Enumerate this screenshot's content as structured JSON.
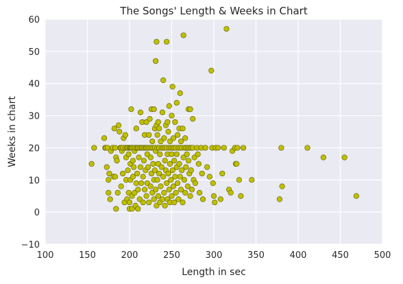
{
  "chart_data": {
    "type": "scatter",
    "title": "The Songs' Length & Weeks in Chart",
    "xlabel": "Length in sec",
    "ylabel": "Weeks in chart",
    "xlim": [
      100,
      500
    ],
    "ylim": [
      -10,
      60
    ],
    "xticks": [
      "100",
      "150",
      "200",
      "250",
      "300",
      "350",
      "400",
      "450",
      "500"
    ],
    "yticks": [
      "−10",
      "0",
      "10",
      "20",
      "30",
      "40",
      "50",
      "60"
    ],
    "grid": true,
    "background_color": "#eaeaf2",
    "grid_color": "#ffffff",
    "point_color": "#bfbf00",
    "point_edge_color": "#5a5a00",
    "series": [
      {
        "points": [
          [
            155,
            15
          ],
          [
            158,
            20
          ],
          [
            170,
            23
          ],
          [
            171,
            20
          ],
          [
            172,
            20
          ],
          [
            173,
            14
          ],
          [
            174,
            20
          ],
          [
            175,
            10
          ],
          [
            175,
            6
          ],
          [
            176,
            12
          ],
          [
            177,
            4
          ],
          [
            178,
            19
          ],
          [
            180,
            20
          ],
          [
            181,
            11
          ],
          [
            182,
            26
          ],
          [
            183,
            11
          ],
          [
            183,
            20
          ],
          [
            184,
            1
          ],
          [
            184,
            17
          ],
          [
            185,
            16
          ],
          [
            186,
            6
          ],
          [
            187,
            27
          ],
          [
            188,
            25
          ],
          [
            189,
            20
          ],
          [
            190,
            8
          ],
          [
            190,
            20
          ],
          [
            191,
            19
          ],
          [
            192,
            12
          ],
          [
            192,
            20
          ],
          [
            193,
            23
          ],
          [
            194,
            3
          ],
          [
            195,
            20
          ],
          [
            195,
            24
          ],
          [
            196,
            10
          ],
          [
            196,
            17
          ],
          [
            197,
            4
          ],
          [
            197,
            20
          ],
          [
            198,
            13
          ],
          [
            198,
            20
          ],
          [
            199,
            6
          ],
          [
            199,
            18
          ],
          [
            200,
            1
          ],
          [
            200,
            20
          ],
          [
            200,
            3
          ],
          [
            201,
            15
          ],
          [
            201,
            10
          ],
          [
            201,
            20
          ],
          [
            202,
            32
          ],
          [
            202,
            20
          ],
          [
            203,
            1
          ],
          [
            203,
            5
          ],
          [
            203,
            20
          ],
          [
            204,
            11
          ],
          [
            204,
            16
          ],
          [
            205,
            20
          ],
          [
            205,
            14
          ],
          [
            206,
            19
          ],
          [
            206,
            6
          ],
          [
            207,
            20
          ],
          [
            207,
            2
          ],
          [
            208,
            26
          ],
          [
            208,
            9
          ],
          [
            209,
            20
          ],
          [
            209,
            12
          ],
          [
            210,
            1
          ],
          [
            210,
            20
          ],
          [
            210,
            7
          ],
          [
            211,
            17
          ],
          [
            212,
            20
          ],
          [
            212,
            4
          ],
          [
            213,
            31
          ],
          [
            213,
            14
          ],
          [
            214,
            20
          ],
          [
            214,
            9
          ],
          [
            215,
            28
          ],
          [
            215,
            20
          ],
          [
            216,
            11
          ],
          [
            216,
            3
          ],
          [
            217,
            20
          ],
          [
            217,
            16
          ],
          [
            218,
            7
          ],
          [
            218,
            24
          ],
          [
            219,
            20
          ],
          [
            219,
            13
          ],
          [
            220,
            28
          ],
          [
            220,
            20
          ],
          [
            220,
            5
          ],
          [
            221,
            18
          ],
          [
            221,
            9
          ],
          [
            222,
            20
          ],
          [
            222,
            14
          ],
          [
            223,
            24
          ],
          [
            223,
            3
          ],
          [
            224,
            29
          ],
          [
            224,
            20
          ],
          [
            225,
            17
          ],
          [
            225,
            8
          ],
          [
            226,
            32
          ],
          [
            226,
            20
          ],
          [
            226,
            12
          ],
          [
            227,
            22
          ],
          [
            227,
            6
          ],
          [
            228,
            20
          ],
          [
            228,
            15
          ],
          [
            229,
            32
          ],
          [
            229,
            10
          ],
          [
            229,
            4
          ],
          [
            230,
            26
          ],
          [
            230,
            20
          ],
          [
            230,
            13
          ],
          [
            231,
            47
          ],
          [
            231,
            19
          ],
          [
            231,
            7
          ],
          [
            232,
            53
          ],
          [
            232,
            27
          ],
          [
            232,
            2
          ],
          [
            233,
            24
          ],
          [
            233,
            20
          ],
          [
            233,
            10
          ],
          [
            234,
            28
          ],
          [
            234,
            15
          ],
          [
            234,
            5
          ],
          [
            235,
            26
          ],
          [
            235,
            20
          ],
          [
            235,
            12
          ],
          [
            236,
            3
          ],
          [
            236,
            18
          ],
          [
            237,
            22
          ],
          [
            237,
            8
          ],
          [
            238,
            20
          ],
          [
            238,
            14
          ],
          [
            239,
            31
          ],
          [
            239,
            4
          ],
          [
            240,
            41
          ],
          [
            240,
            20
          ],
          [
            240,
            11
          ],
          [
            241,
            23
          ],
          [
            241,
            6
          ],
          [
            242,
            20
          ],
          [
            242,
            16
          ],
          [
            242,
            2
          ],
          [
            243,
            27
          ],
          [
            243,
            13
          ],
          [
            244,
            53
          ],
          [
            244,
            20
          ],
          [
            244,
            9
          ],
          [
            245,
            28
          ],
          [
            245,
            18
          ],
          [
            245,
            4
          ],
          [
            246,
            25
          ],
          [
            246,
            12
          ],
          [
            247,
            33
          ],
          [
            247,
            20
          ],
          [
            247,
            7
          ],
          [
            248,
            22
          ],
          [
            248,
            15
          ],
          [
            248,
            3
          ],
          [
            249,
            20
          ],
          [
            249,
            10
          ],
          [
            250,
            30
          ],
          [
            250,
            18
          ],
          [
            250,
            5
          ],
          [
            251,
            39
          ],
          [
            251,
            20
          ],
          [
            251,
            13
          ],
          [
            252,
            23
          ],
          [
            252,
            8
          ],
          [
            253,
            20
          ],
          [
            253,
            16
          ],
          [
            253,
            3
          ],
          [
            254,
            28
          ],
          [
            254,
            11
          ],
          [
            255,
            20
          ],
          [
            255,
            6
          ],
          [
            256,
            34
          ],
          [
            256,
            18
          ],
          [
            256,
            14
          ],
          [
            257,
            24
          ],
          [
            257,
            9
          ],
          [
            258,
            20
          ],
          [
            258,
            4
          ],
          [
            259,
            26
          ],
          [
            259,
            15
          ],
          [
            260,
            37
          ],
          [
            260,
            20
          ],
          [
            260,
            11
          ],
          [
            261,
            22
          ],
          [
            261,
            7
          ],
          [
            262,
            20
          ],
          [
            262,
            13
          ],
          [
            263,
            26
          ],
          [
            263,
            3
          ],
          [
            264,
            55
          ],
          [
            264,
            17
          ],
          [
            265,
            20
          ],
          [
            265,
            10
          ],
          [
            266,
            23
          ],
          [
            266,
            6
          ],
          [
            267,
            20
          ],
          [
            267,
            14
          ],
          [
            268,
            18
          ],
          [
            269,
            20
          ],
          [
            269,
            8
          ],
          [
            270,
            32
          ],
          [
            270,
            16
          ],
          [
            271,
            20
          ],
          [
            271,
            12
          ],
          [
            272,
            32
          ],
          [
            272,
            5
          ],
          [
            273,
            20
          ],
          [
            273,
            13
          ],
          [
            274,
            7
          ],
          [
            275,
            29
          ],
          [
            275,
            20
          ],
          [
            276,
            10
          ],
          [
            277,
            17
          ],
          [
            278,
            9
          ],
          [
            280,
            20
          ],
          [
            281,
            18
          ],
          [
            282,
            15
          ],
          [
            283,
            6
          ],
          [
            285,
            20
          ],
          [
            286,
            12
          ],
          [
            287,
            4
          ],
          [
            290,
            20
          ],
          [
            292,
            14
          ],
          [
            295,
            11
          ],
          [
            297,
            44
          ],
          [
            298,
            20
          ],
          [
            299,
            9
          ],
          [
            300,
            5
          ],
          [
            301,
            3
          ],
          [
            302,
            20
          ],
          [
            305,
            20
          ],
          [
            308,
            4
          ],
          [
            310,
            12
          ],
          [
            312,
            20
          ],
          [
            315,
            57
          ],
          [
            318,
            7
          ],
          [
            320,
            6
          ],
          [
            322,
            19
          ],
          [
            325,
            20
          ],
          [
            326,
            15
          ],
          [
            327,
            15
          ],
          [
            328,
            20
          ],
          [
            330,
            10
          ],
          [
            332,
            5
          ],
          [
            335,
            20
          ],
          [
            345,
            10
          ],
          [
            378,
            4
          ],
          [
            380,
            20
          ],
          [
            381,
            8
          ],
          [
            411,
            20
          ],
          [
            430,
            17
          ],
          [
            455,
            17
          ],
          [
            469,
            5
          ]
        ]
      }
    ]
  }
}
